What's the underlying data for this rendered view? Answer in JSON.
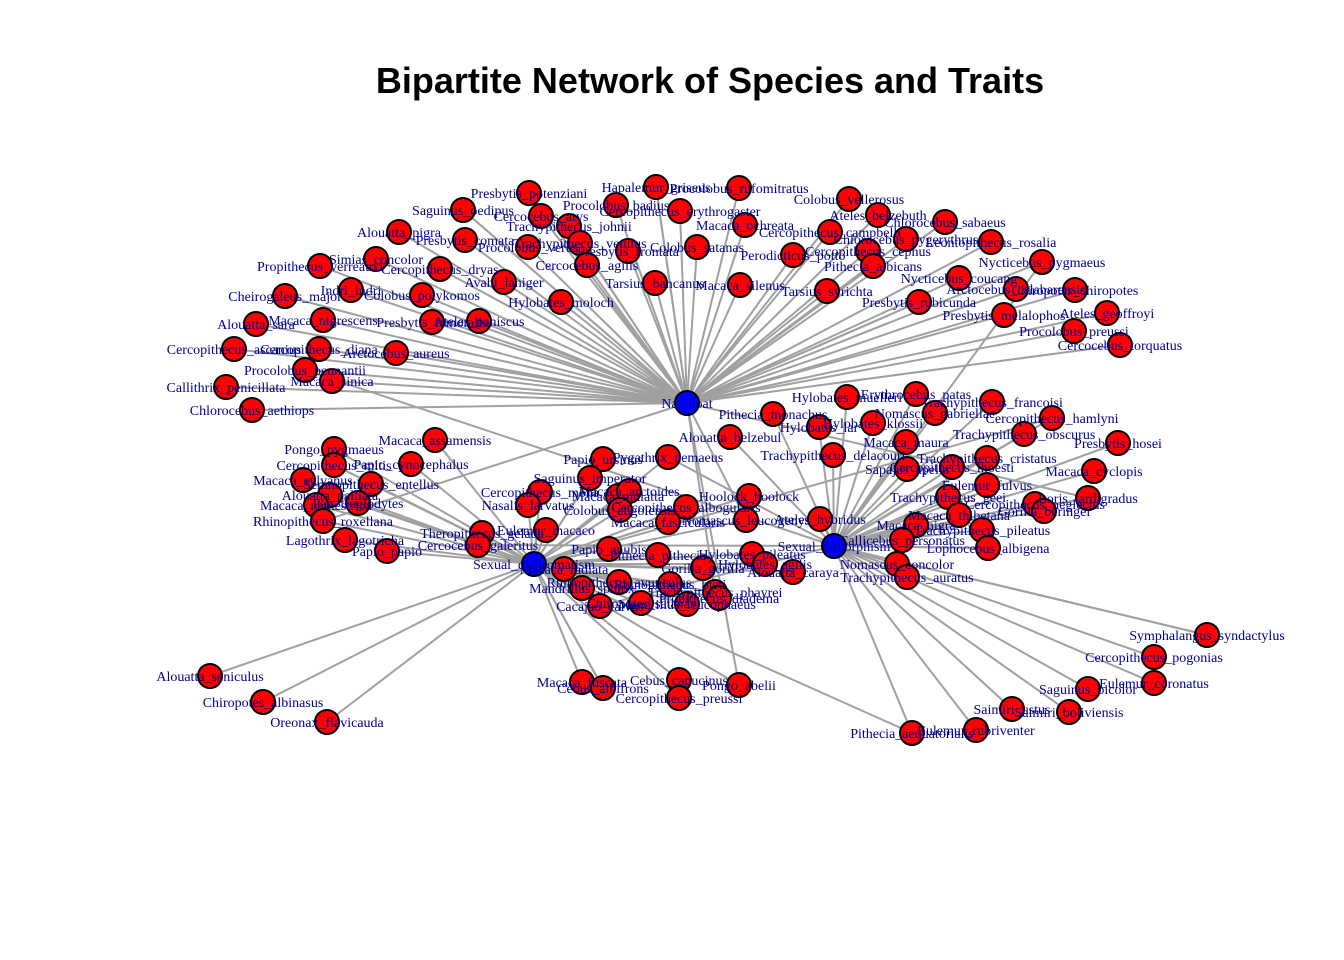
{
  "title": "Bipartite Network of Species and Traits",
  "colors": {
    "species": "#ff0000",
    "trait": "#0000ff",
    "edge": "#a0a0a0",
    "label": "#00008b"
  },
  "traits": [
    "Nat_boat",
    "Sexual_dimorphism",
    "Sexual_dichromatism"
  ],
  "species": [
    "Hapalemur_griseus",
    "Procolobus_rufomitratus",
    "Presbytis_potenziani",
    "Procolobus_badius",
    "Cercopithecus_erythrogaster",
    "Colobus_vellerosus",
    "Saguinus_oedipus",
    "Cercocebus_atys",
    "Trachypithecus_johnii",
    "Macaca_ochreata",
    "Ateles_belzebuth",
    "Chlorocebus_sabaeus",
    "Chlorocebus_pygerythrus",
    "Alouatta_pigra",
    "Trachypithecus_vetulus",
    "Presbytis_comata",
    "Procolobus_verus",
    "Presbytis_frontata",
    "Colobus_satanas",
    "Cercopithecus_campbelli",
    "Leontopithecus_rosalia",
    "Simias_concolor",
    "Cercocebus_agilis",
    "Perodicticus_potto",
    "Cercopithecus_cephus",
    "Nycticebus_pygmaeus",
    "Propithecus_verreauxi",
    "Cercopithecus_dryas",
    "Avahi_laniger",
    "Pithecia_albicans",
    "Nycticebus_coucang",
    "Indri_indri",
    "Tarsius_bancanus",
    "Macaca_silenus",
    "Tarsius_syrichta",
    "Cheirogaleus_major",
    "Colobus_polykomos",
    "Hylobates_moloch",
    "Arctocebus_calabarensis",
    "Chiropotes_chiropotes",
    "Presbytis_rubicunda",
    "Macaca_nigrescens",
    "Presbytis_femoralis",
    "Ateles_paniscus",
    "Ateles_geoffroyi",
    "Alouatta_sara",
    "Presbytis_melalophos",
    "Procolobus_preussi",
    "Cercopithecus_ascanius",
    "Cercopithecus_diana",
    "Cercocebus_torquatus",
    "Arctocebus_aureus",
    "Procolobus_pennantii",
    "Macaca_sinica",
    "Callithrix_penicillata",
    "Chlorocebus_aethiops",
    "Hylobates_muelleri",
    "Erythrocebus_patas",
    "Trachypithecus_francoisi",
    "Pithecia_monachus",
    "Nomascus_gabriellae",
    "Cercopithecus_hamlyni",
    "Hylobates_lar",
    "Hylobates_klossii",
    "Trachypithecus_obscurus",
    "Presbytis_hosei",
    "Macaca_maura",
    "Trachypithecus_delacouri",
    "Trachypithecus_cristatus",
    "Macaca_cyclopis",
    "Sapajus_apella",
    "Cercopithecus_lhoesti",
    "Eulemur_fulvus",
    "Loris_tardigradus",
    "Trachypithecus_geei",
    "Cercopithecus_neglectus",
    "Gorilla_beringei",
    "Macaca_nigra",
    "Macaca_thibetana",
    "Trachypithecus_pileatus",
    "Lophocebus_albigena",
    "Callicebus_personatus",
    "Nomascus_concolor",
    "Trachypithecus_auratus",
    "Pongo_pygmaeus",
    "Macaca_assamensis",
    "Cercopithecus_mitis",
    "Papio_cynocephalus",
    "Macaca_sylvanus",
    "Semnopithecus_entellus",
    "Alouatta_palliata",
    "Macaca_nemestrina",
    "Pan_troglodytes",
    "Rhinopithecus_roxellana",
    "Lagothrix_lagotricha",
    "Papio_papio",
    "Papio_ursinus",
    "Pygathrix_nemaeus",
    "Saguinus_imperator",
    "Macaca_mulatta",
    "Cercopithecus_mona",
    "Nasalis_larvatus",
    "Macaca_arctoides",
    "Hoolock_hoolock",
    "Cercopithecus_albogularis",
    "Colobus_angolensis",
    "Eulemur_macaco",
    "Hylobates_pileatus",
    "Nomascus_leucogenys",
    "Theropithecus_gelada",
    "Macaca_fascicularis",
    "Cercocebus_galeritus",
    "Papio_anubis",
    "Pithecia_pithecia",
    "Hylobates_agilis",
    "Macaca_radiata",
    "Gorilla_gorilla",
    "Alouatta_caraya",
    "Trachypithecus_phayrei",
    "Rhinopithecus_avunculus",
    "Rhinopithecus_bieti",
    "Mandrillus_sphinx",
    "Mandrillus_leucophaeus",
    "Propithecus_diadema",
    "Cacajao_calvus",
    "Chiropotes_satanas",
    "Macaca_fuscata",
    "Cebus_albifrons",
    "Cebus_capucinus",
    "Pongo_abelii",
    "Cercopithecus_preussi",
    "Alouatta_seniculus",
    "Chiropotes_albinasus",
    "Oreonax_flavicauda",
    "Symphalangus_syndactylus",
    "Cercopithecus_pogonias",
    "Saguinus_bicolor",
    "Eulemur_coronatus",
    "Saimiri_ustus",
    "Saimiri_boliviensis",
    "Pithecia_aequatorialis",
    "Eulemur_rubriventer",
    "Alouatta_belzebul",
    "Ateles_hybridus",
    "Cercopithecus_nictitans"
  ]
}
